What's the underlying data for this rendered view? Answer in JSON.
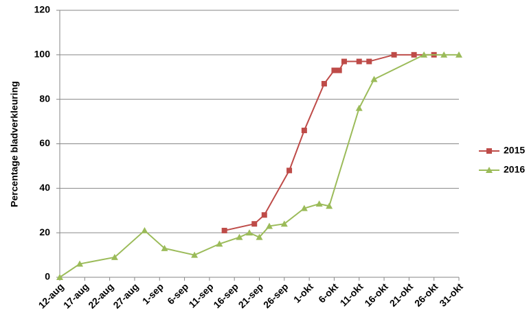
{
  "chart_data": {
    "type": "line",
    "y_label": "Percentage bladverkleuring",
    "xlim": [
      0,
      80
    ],
    "xticks": [
      {
        "value": 0,
        "label": "12-aug"
      },
      {
        "value": 5,
        "label": "17-aug"
      },
      {
        "value": 10,
        "label": "22-aug"
      },
      {
        "value": 15,
        "label": "27-aug"
      },
      {
        "value": 20,
        "label": "1-sep"
      },
      {
        "value": 25,
        "label": "6-sep"
      },
      {
        "value": 30,
        "label": "11-sep"
      },
      {
        "value": 35,
        "label": "16-sep"
      },
      {
        "value": 40,
        "label": "21-sep"
      },
      {
        "value": 45,
        "label": "26-sep"
      },
      {
        "value": 50,
        "label": "1-okt"
      },
      {
        "value": 55,
        "label": "6-okt"
      },
      {
        "value": 60,
        "label": "11-okt"
      },
      {
        "value": 65,
        "label": "16-okt"
      },
      {
        "value": 70,
        "label": "21-okt"
      },
      {
        "value": 75,
        "label": "26-okt"
      },
      {
        "value": 80,
        "label": "31-okt"
      }
    ],
    "ylim": [
      0,
      120
    ],
    "yticks": [
      0,
      20,
      40,
      60,
      80,
      100,
      120
    ],
    "grid": true,
    "legend": "right",
    "series": [
      {
        "name": "2015",
        "color": "#be4b48",
        "marker": "square",
        "x": [
          33,
          39,
          41,
          46,
          49,
          53,
          55,
          56,
          57,
          60,
          62,
          67,
          71,
          75
        ],
        "values": [
          21,
          24,
          28,
          48,
          66,
          87,
          93,
          93,
          97,
          97,
          97,
          100,
          100,
          100
        ]
      },
      {
        "name": "2016",
        "color": "#9bbb59",
        "marker": "triangle",
        "x": [
          0,
          4,
          11,
          17,
          21,
          27,
          32,
          36,
          38,
          40,
          42,
          45,
          49,
          52,
          54,
          60,
          63,
          73,
          77,
          80
        ],
        "values": [
          0,
          6,
          9,
          21,
          13,
          10,
          15,
          18,
          20,
          18,
          23,
          24,
          31,
          33,
          32,
          76,
          89,
          100,
          100,
          100
        ]
      }
    ]
  }
}
